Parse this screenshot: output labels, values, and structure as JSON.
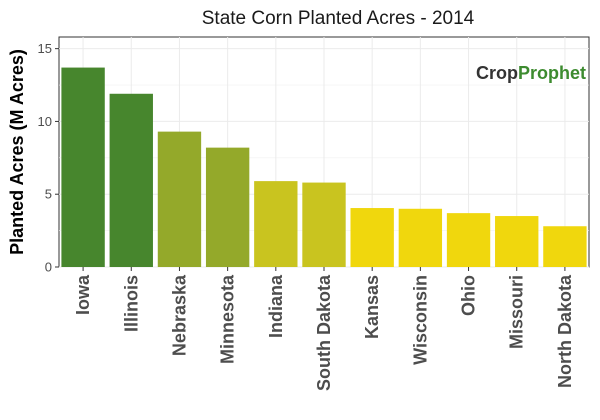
{
  "chart_data": {
    "type": "bar",
    "title": "State Corn Planted Acres - 2014",
    "xlabel": "",
    "ylabel": "Planted Acres (M Acres)",
    "ylim": [
      0,
      15.8
    ],
    "yticks": [
      0,
      5,
      10,
      15
    ],
    "grid": true,
    "categories": [
      "Iowa",
      "Illinois",
      "Nebraska",
      "Minnesota",
      "Indiana",
      "South Dakota",
      "Kansas",
      "Wisconsin",
      "Ohio",
      "Missouri",
      "North Dakota"
    ],
    "values": [
      13.7,
      11.9,
      9.3,
      8.2,
      5.9,
      5.8,
      4.05,
      4.0,
      3.7,
      3.5,
      2.8
    ],
    "colors": [
      "#47862d",
      "#47862d",
      "#94a92a",
      "#94a92a",
      "#c9c41f",
      "#c9c41f",
      "#f0d70d",
      "#f0d70d",
      "#f0d70d",
      "#f0d70d",
      "#f0d70d"
    ]
  },
  "logo": {
    "crop": "Crop",
    "prophet": "Prophet"
  }
}
